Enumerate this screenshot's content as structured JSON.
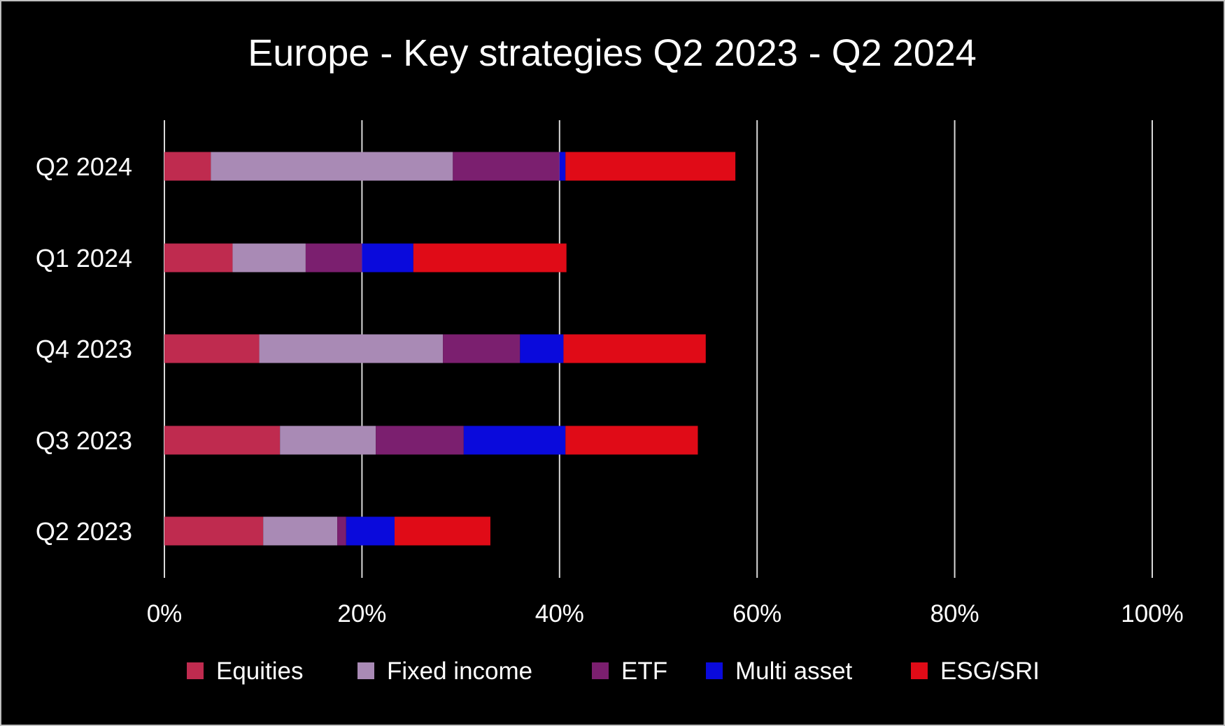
{
  "chart_data": {
    "type": "bar",
    "orientation": "horizontal",
    "stacked": true,
    "title": "Europe - Key strategies Q2 2023 - Q2 2024",
    "categories": [
      "Q2 2024",
      "Q1 2024",
      "Q4 2023",
      "Q3 2023",
      "Q2 2023"
    ],
    "series": [
      {
        "name": "Equities",
        "color": "#bf2b4f",
        "values": [
          4.7,
          6.9,
          9.6,
          11.7,
          10.0
        ]
      },
      {
        "name": "Fixed income",
        "color": "#a98ab5",
        "values": [
          24.5,
          7.4,
          18.6,
          9.7,
          7.5
        ]
      },
      {
        "name": "ETF",
        "color": "#7b1f6f",
        "values": [
          10.8,
          5.7,
          7.8,
          8.9,
          0.9
        ]
      },
      {
        "name": "Multi asset",
        "color": "#0a0adc",
        "values": [
          0.6,
          5.2,
          4.4,
          10.3,
          4.9
        ]
      },
      {
        "name": "ESG/SRI",
        "color": "#e00b17",
        "values": [
          17.2,
          15.5,
          14.4,
          13.4,
          9.7
        ]
      }
    ],
    "xlim": [
      0,
      100
    ],
    "xticks": [
      "0%",
      "20%",
      "40%",
      "60%",
      "80%",
      "100%"
    ],
    "grid": true,
    "legend_position": "bottom"
  }
}
